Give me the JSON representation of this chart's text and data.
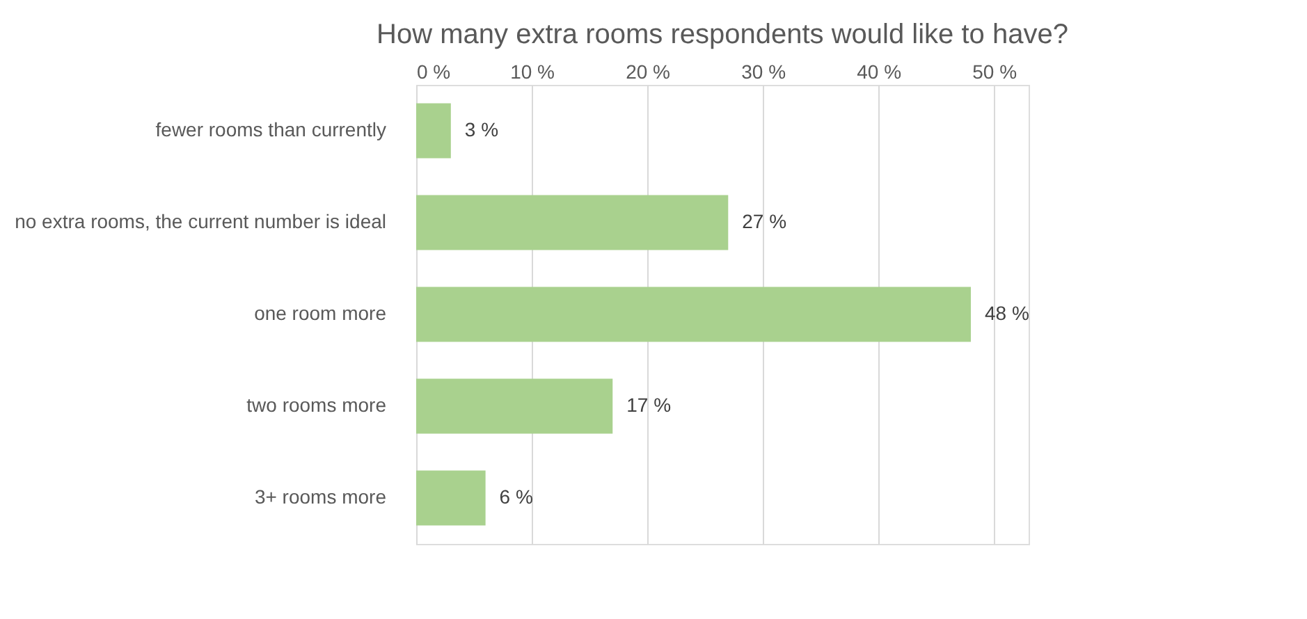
{
  "chart_data": {
    "type": "bar",
    "orientation": "horizontal",
    "title": "How many extra rooms respondents would like to have?",
    "categories": [
      "fewer rooms than currently",
      "no extra rooms, the current number is ideal",
      "one room more",
      "two rooms more",
      "3+ rooms more"
    ],
    "values": [
      3,
      27,
      48,
      17,
      6
    ],
    "value_labels": [
      "3 %",
      "27 %",
      "48 %",
      "17 %",
      "6 %"
    ],
    "color": "#a9d18e",
    "xlim": [
      0,
      53
    ],
    "xticks": [
      {
        "value": 0,
        "label": "0 %"
      },
      {
        "value": 10,
        "label": "10 %"
      },
      {
        "value": 20,
        "label": "20 %"
      },
      {
        "value": 30,
        "label": "30 %"
      },
      {
        "value": 40,
        "label": "40 %"
      },
      {
        "value": 50,
        "label": "50 %"
      }
    ],
    "grid": "x"
  }
}
